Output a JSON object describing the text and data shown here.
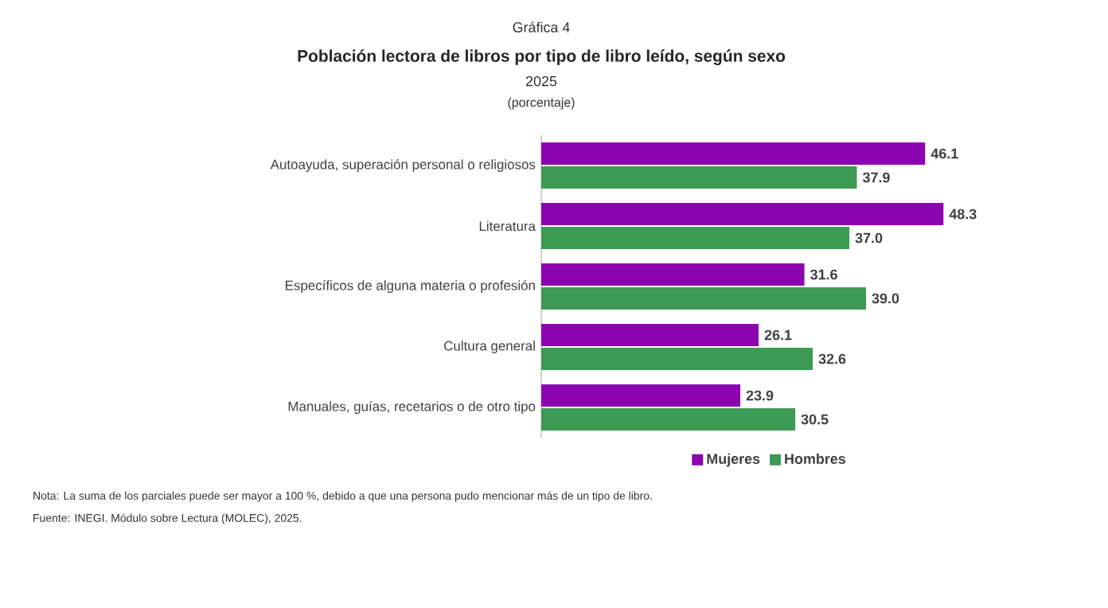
{
  "chart_data": {
    "type": "bar",
    "orientation": "horizontal",
    "title": "Población lectora de libros por tipo de libro leído, según sexo",
    "subtitle": "2025",
    "annotations": [
      "Gráfica 4",
      "(porcentaje)",
      "Nota: La suma de los parciales puede ser mayor a 100 %, debido a que una persona pudo mencionar más de un tipo de libro.",
      "Fuente: INEGI. Módulo sobre Lectura (MOLEC), 2025."
    ],
    "categories": [
      "Autoayuda, superación personal o religiosos",
      "Literatura",
      "Específicos de alguna materia o profesión",
      "Cultura general",
      "Manuales, guías, recetarios o de otro tipo"
    ],
    "series": [
      {
        "name": "Mujeres",
        "color": "#8a05b0",
        "values": [
          46.1,
          48.3,
          31.6,
          26.1,
          23.9
        ],
        "value_labels": [
          "46.1",
          "48.3",
          "31.6",
          "26.1",
          "23.9"
        ]
      },
      {
        "name": "Hombres",
        "color": "#3c9a55",
        "values": [
          37.9,
          37.0,
          39.0,
          32.6,
          30.5
        ],
        "value_labels": [
          "37.9",
          "37.0",
          "39.0",
          "32.6",
          "30.5"
        ]
      }
    ],
    "legend": "bottom"
  }
}
